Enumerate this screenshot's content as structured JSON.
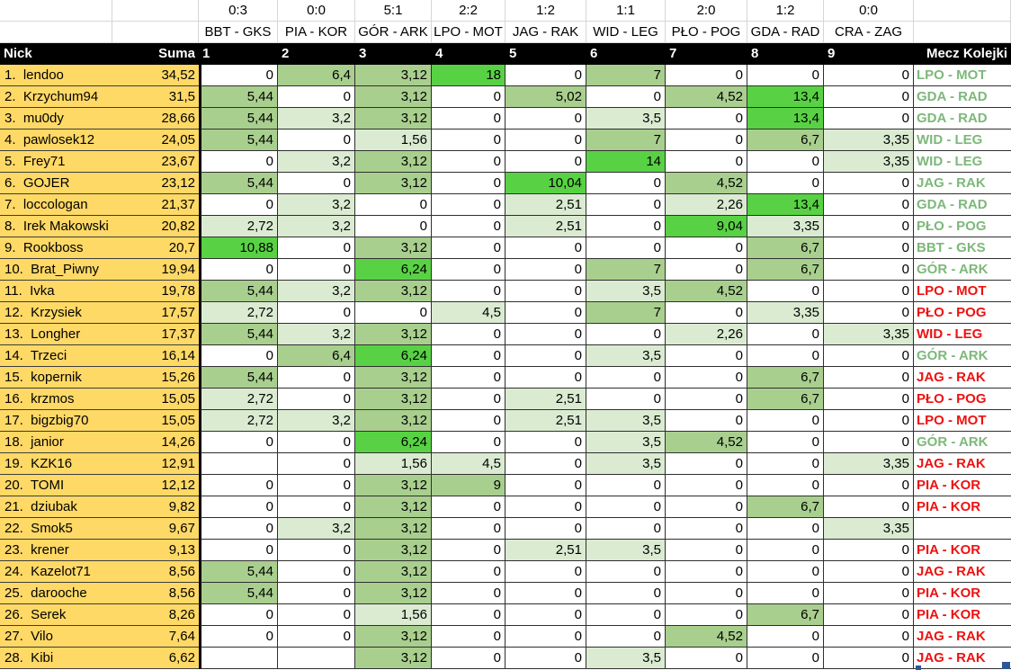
{
  "palette": {
    "player_col_bg": "#FFD966",
    "header_bg": "#000000",
    "header_text": "#FFFFFF",
    "cell_high": "#58D244",
    "cell_mid": "#A9CF8E",
    "cell_low": "#DAEBD2",
    "cell_zero": "#FFFFFF",
    "pick_won": "#7DB87A",
    "pick_lost": "#EE1111",
    "fill_handle": "#2E5597"
  },
  "header": {
    "nick": "Nick",
    "suma": "Suma",
    "cols": [
      "1",
      "2",
      "3",
      "4",
      "5",
      "6",
      "7",
      "8",
      "9"
    ],
    "mecz": "Mecz Kolejki"
  },
  "matches": [
    {
      "col": "1",
      "score": "0:3",
      "name": "BBT - GKS"
    },
    {
      "col": "2",
      "score": "0:0",
      "name": "PIA - KOR"
    },
    {
      "col": "3",
      "score": "5:1",
      "name": "GÓR - ARK"
    },
    {
      "col": "4",
      "score": "2:2",
      "name": "LPO - MOT"
    },
    {
      "col": "5",
      "score": "1:2",
      "name": "JAG - RAK"
    },
    {
      "col": "6",
      "score": "1:1",
      "name": "WID - LEG"
    },
    {
      "col": "7",
      "score": "2:0",
      "name": "PŁO - POG"
    },
    {
      "col": "8",
      "score": "1:2",
      "name": "GDA - RAD"
    },
    {
      "col": "9",
      "score": "0:0",
      "name": "CRA - ZAG"
    }
  ],
  "column_scale_max": [
    10.88,
    12.8,
    6.24,
    18,
    10.04,
    14,
    9.04,
    13.4,
    13.4
  ],
  "rows": [
    {
      "rank": "1.",
      "nick": "lendoo",
      "suma": "34,52",
      "cells": [
        "0",
        "6,4",
        "3,12",
        "18",
        "0",
        "7",
        "0",
        "0",
        "0"
      ],
      "mecz": "LPO - MOT",
      "status": "won"
    },
    {
      "rank": "2.",
      "nick": "Krzychum94",
      "suma": "31,5",
      "cells": [
        "5,44",
        "0",
        "3,12",
        "0",
        "5,02",
        "0",
        "4,52",
        "13,4",
        "0"
      ],
      "mecz": "GDA - RAD",
      "status": "won"
    },
    {
      "rank": "3.",
      "nick": "mu0dy",
      "suma": "28,66",
      "cells": [
        "5,44",
        "3,2",
        "3,12",
        "0",
        "0",
        "3,5",
        "0",
        "13,4",
        "0"
      ],
      "mecz": "GDA - RAD",
      "status": "won"
    },
    {
      "rank": "4.",
      "nick": "pawlosek12",
      "suma": "24,05",
      "cells": [
        "5,44",
        "0",
        "1,56",
        "0",
        "0",
        "7",
        "0",
        "6,7",
        "3,35"
      ],
      "mecz": "WID - LEG",
      "status": "won"
    },
    {
      "rank": "5.",
      "nick": "Frey71",
      "suma": "23,67",
      "cells": [
        "0",
        "3,2",
        "3,12",
        "0",
        "0",
        "14",
        "0",
        "0",
        "3,35"
      ],
      "mecz": "WID - LEG",
      "status": "won"
    },
    {
      "rank": "6.",
      "nick": "GOJER",
      "suma": "23,12",
      "cells": [
        "5,44",
        "0",
        "3,12",
        "0",
        "10,04",
        "0",
        "4,52",
        "0",
        "0"
      ],
      "mecz": "JAG - RAK",
      "status": "won"
    },
    {
      "rank": "7.",
      "nick": "loccologan",
      "suma": "21,37",
      "cells": [
        "0",
        "3,2",
        "0",
        "0",
        "2,51",
        "0",
        "2,26",
        "13,4",
        "0"
      ],
      "mecz": "GDA - RAD",
      "status": "won"
    },
    {
      "rank": "8.",
      "nick": "Irek Makowski",
      "suma": "20,82",
      "cells": [
        "2,72",
        "3,2",
        "0",
        "0",
        "2,51",
        "0",
        "9,04",
        "3,35",
        "0"
      ],
      "mecz": "PŁO - POG",
      "status": "won"
    },
    {
      "rank": "9.",
      "nick": "Rookboss",
      "suma": "20,7",
      "cells": [
        "10,88",
        "0",
        "3,12",
        "0",
        "0",
        "0",
        "0",
        "6,7",
        "0"
      ],
      "mecz": "BBT - GKS",
      "status": "won"
    },
    {
      "rank": "10.",
      "nick": "Brat_Piwny",
      "suma": "19,94",
      "cells": [
        "0",
        "0",
        "6,24",
        "0",
        "0",
        "7",
        "0",
        "6,7",
        "0"
      ],
      "mecz": "GÓR - ARK",
      "status": "won"
    },
    {
      "rank": "11.",
      "nick": "Ivka",
      "suma": "19,78",
      "cells": [
        "5,44",
        "3,2",
        "3,12",
        "0",
        "0",
        "3,5",
        "4,52",
        "0",
        "0"
      ],
      "mecz": "LPO - MOT",
      "status": "lost"
    },
    {
      "rank": "12.",
      "nick": "Krzysiek",
      "suma": "17,57",
      "cells": [
        "2,72",
        "0",
        "0",
        "4,5",
        "0",
        "7",
        "0",
        "3,35",
        "0"
      ],
      "mecz": "PŁO - POG",
      "status": "lost"
    },
    {
      "rank": "13.",
      "nick": "Longher",
      "suma": "17,37",
      "cells": [
        "5,44",
        "3,2",
        "3,12",
        "0",
        "0",
        "0",
        "2,26",
        "0",
        "3,35"
      ],
      "mecz": "WID - LEG",
      "status": "lost"
    },
    {
      "rank": "14.",
      "nick": "Trzeci",
      "suma": "16,14",
      "cells": [
        "0",
        "6,4",
        "6,24",
        "0",
        "0",
        "3,5",
        "0",
        "0",
        "0"
      ],
      "mecz": "GÓR - ARK",
      "status": "won"
    },
    {
      "rank": "15.",
      "nick": "kopernik",
      "suma": "15,26",
      "cells": [
        "5,44",
        "0",
        "3,12",
        "0",
        "0",
        "0",
        "0",
        "6,7",
        "0"
      ],
      "mecz": "JAG - RAK",
      "status": "lost"
    },
    {
      "rank": "16.",
      "nick": "krzmos",
      "suma": "15,05",
      "cells": [
        "2,72",
        "0",
        "3,12",
        "0",
        "2,51",
        "0",
        "0",
        "6,7",
        "0"
      ],
      "mecz": "PŁO - POG",
      "status": "lost"
    },
    {
      "rank": "17.",
      "nick": "bigzbig70",
      "suma": "15,05",
      "cells": [
        "2,72",
        "3,2",
        "3,12",
        "0",
        "2,51",
        "3,5",
        "0",
        "0",
        "0"
      ],
      "mecz": "LPO - MOT",
      "status": "lost"
    },
    {
      "rank": "18.",
      "nick": "janior",
      "suma": "14,26",
      "cells": [
        "0",
        "0",
        "6,24",
        "0",
        "0",
        "3,5",
        "4,52",
        "0",
        "0"
      ],
      "mecz": "GÓR - ARK",
      "status": "won"
    },
    {
      "rank": "19.",
      "nick": "KZK16",
      "suma": "12,91",
      "cells": [
        "",
        "0",
        "1,56",
        "4,5",
        "0",
        "3,5",
        "0",
        "0",
        "3,35"
      ],
      "mecz": "JAG - RAK",
      "status": "lost"
    },
    {
      "rank": "20.",
      "nick": "TOMI",
      "suma": "12,12",
      "cells": [
        "0",
        "0",
        "3,12",
        "9",
        "0",
        "0",
        "0",
        "0",
        "0"
      ],
      "mecz": "PIA - KOR",
      "status": "lost"
    },
    {
      "rank": "21.",
      "nick": "dziubak",
      "suma": "9,82",
      "cells": [
        "0",
        "0",
        "3,12",
        "0",
        "0",
        "0",
        "0",
        "6,7",
        "0"
      ],
      "mecz": "PIA - KOR",
      "status": "lost"
    },
    {
      "rank": "22.",
      "nick": "Smok5",
      "suma": "9,67",
      "cells": [
        "0",
        "3,2",
        "3,12",
        "0",
        "0",
        "0",
        "0",
        "0",
        "3,35"
      ],
      "mecz": "",
      "status": "none"
    },
    {
      "rank": "23.",
      "nick": "krener",
      "suma": "9,13",
      "cells": [
        "0",
        "0",
        "3,12",
        "0",
        "2,51",
        "3,5",
        "0",
        "0",
        "0"
      ],
      "mecz": "PIA - KOR",
      "status": "lost"
    },
    {
      "rank": "24.",
      "nick": "Kazelot71",
      "suma": "8,56",
      "cells": [
        "5,44",
        "0",
        "3,12",
        "0",
        "0",
        "0",
        "0",
        "0",
        "0"
      ],
      "mecz": "JAG - RAK",
      "status": "lost"
    },
    {
      "rank": "25.",
      "nick": "darooche",
      "suma": "8,56",
      "cells": [
        "5,44",
        "0",
        "3,12",
        "0",
        "0",
        "0",
        "0",
        "0",
        "0"
      ],
      "mecz": "PIA - KOR",
      "status": "lost"
    },
    {
      "rank": "26.",
      "nick": "Serek",
      "suma": "8,26",
      "cells": [
        "0",
        "0",
        "1,56",
        "0",
        "0",
        "0",
        "0",
        "6,7",
        "0"
      ],
      "mecz": "PIA - KOR",
      "status": "lost"
    },
    {
      "rank": "27.",
      "nick": "Vilo",
      "suma": "7,64",
      "cells": [
        "0",
        "0",
        "3,12",
        "0",
        "0",
        "0",
        "4,52",
        "0",
        "0"
      ],
      "mecz": "JAG - RAK",
      "status": "lost"
    },
    {
      "rank": "28.",
      "nick": "Kibi",
      "suma": "6,62",
      "cells": [
        "",
        "",
        "3,12",
        "0",
        "0",
        "3,5",
        "0",
        "0",
        "0"
      ],
      "mecz": "JAG - RAK",
      "status": "lost"
    }
  ]
}
